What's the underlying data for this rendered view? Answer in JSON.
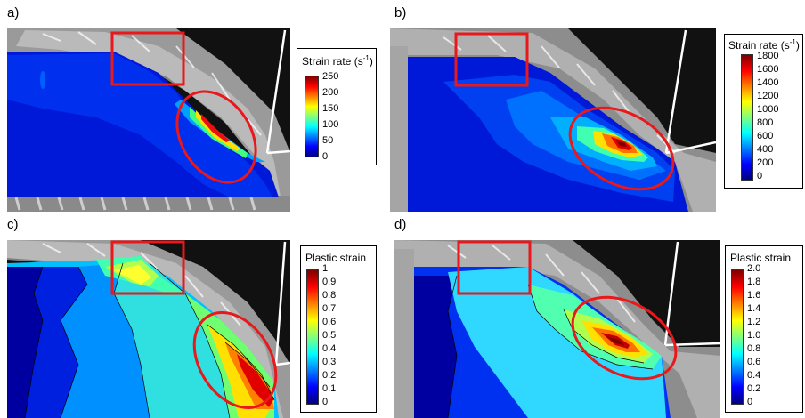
{
  "panels": [
    {
      "label": "a)"
    },
    {
      "label": "b)"
    },
    {
      "label": "c)"
    },
    {
      "label": "d)"
    }
  ],
  "legends": [
    {
      "title": "Strain rate (s",
      "sup": "-1",
      "close": ")",
      "ticks": [
        "250",
        "200",
        "150",
        "100",
        "50",
        "0"
      ]
    },
    {
      "title": "Strain rate (s",
      "sup": "-1",
      "close": ")",
      "ticks": [
        "1800",
        "1600",
        "1400",
        "1200",
        "1000",
        "800",
        "600",
        "400",
        "200",
        "0"
      ]
    },
    {
      "title": "Plastic strain",
      "sup": "",
      "close": "",
      "ticks": [
        "1",
        "0.9",
        "0.8",
        "0.7",
        "0.6",
        "0.5",
        "0.4",
        "0.3",
        "0.2",
        "0.1",
        "0"
      ]
    },
    {
      "title": "Plastic strain",
      "sup": "",
      "close": "",
      "ticks": [
        "2.0",
        "1.8",
        "1.6",
        "1.4",
        "1.2",
        "1.0",
        "0.8",
        "0.6",
        "0.4",
        "0.2",
        "0"
      ]
    }
  ],
  "colors": {
    "highlight": "#e8181c",
    "colormap": [
      "#00007f",
      "#0000ff",
      "#007fff",
      "#00ffff",
      "#7fff7f",
      "#ffff00",
      "#ff7f00",
      "#ff0000",
      "#7f0000"
    ]
  }
}
